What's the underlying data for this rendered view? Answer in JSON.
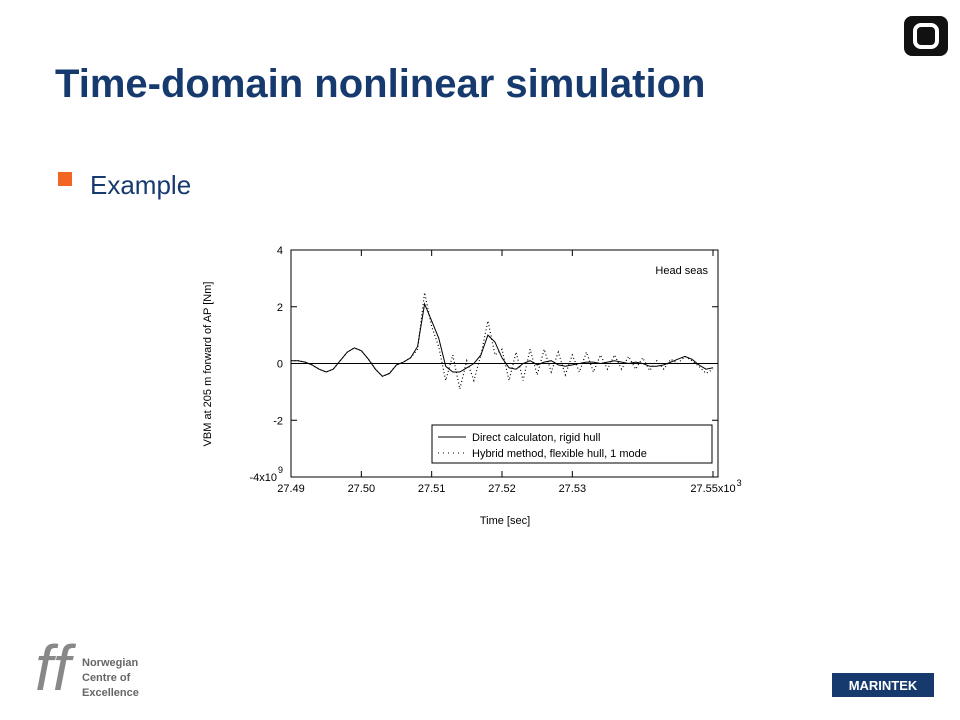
{
  "slide": {
    "title": "Time-domain nonlinear simulation",
    "bullet": "Example",
    "logo_left": [
      "Norwegian",
      "Centre of",
      "Excellence"
    ],
    "logo_right": "MARINTEK"
  },
  "chart_data": {
    "type": "line",
    "x_label": "Time [sec]",
    "y_label": "VBM at 205 m forward of AP [Nm]",
    "annotation": "Head seas",
    "x_exponent": "3",
    "y_exponent": "9",
    "xlim": [
      27.49,
      27.55
    ],
    "ylim": [
      -4,
      4
    ],
    "xticks": [
      27.49,
      {
        "value": 27.5,
        "label": "27.50"
      },
      27.51,
      27.52,
      27.53,
      {
        "value": 27.55,
        "label": "27.55x10"
      }
    ],
    "yticks": [
      4,
      2,
      0,
      -2,
      {
        "value": -4,
        "label": "-4x10"
      }
    ],
    "x": [
      27.49,
      27.491,
      27.492,
      27.493,
      27.494,
      27.495,
      27.496,
      27.497,
      27.498,
      27.499,
      27.5,
      27.501,
      27.502,
      27.503,
      27.504,
      27.505,
      27.506,
      27.507,
      27.508,
      27.509,
      27.51,
      27.511,
      27.512,
      27.513,
      27.514,
      27.515,
      27.516,
      27.517,
      27.518,
      27.519,
      27.52,
      27.521,
      27.522,
      27.523,
      27.524,
      27.525,
      27.526,
      27.527,
      27.528,
      27.529,
      27.53,
      27.531,
      27.532,
      27.533,
      27.534,
      27.535,
      27.536,
      27.537,
      27.538,
      27.539,
      27.54,
      27.541,
      27.542,
      27.543,
      27.544,
      27.545,
      27.546,
      27.547,
      27.548,
      27.549,
      27.55
    ],
    "series": [
      {
        "name": "Direct calculaton, rigid hull",
        "color": "#000000",
        "style": "solid",
        "values": [
          0.1,
          0.1,
          0.05,
          -0.05,
          -0.2,
          -0.3,
          -0.2,
          0.1,
          0.4,
          0.55,
          0.45,
          0.15,
          -0.2,
          -0.45,
          -0.35,
          -0.05,
          0.05,
          0.2,
          0.6,
          2.1,
          1.5,
          0.9,
          -0.1,
          -0.3,
          -0.3,
          -0.15,
          0,
          0.3,
          1.0,
          0.75,
          0.2,
          -0.15,
          -0.2,
          0,
          0.1,
          -0.05,
          0.05,
          0.1,
          -0.05,
          -0.1,
          -0.05,
          0,
          0.05,
          0.05,
          0,
          0.05,
          0.1,
          0.05,
          0,
          0.05,
          0,
          -0.1,
          -0.1,
          -0.05,
          0.05,
          0.15,
          0.25,
          0.15,
          -0.05,
          -0.2,
          -0.15
        ]
      },
      {
        "name": "Hybrid method, flexible hull, 1 mode",
        "color": "#000000",
        "style": "dotted",
        "values": [
          0.1,
          0.1,
          0.05,
          -0.05,
          -0.2,
          -0.3,
          -0.2,
          0.1,
          0.4,
          0.55,
          0.45,
          0.15,
          -0.2,
          -0.45,
          -0.35,
          -0.05,
          0.05,
          0.2,
          0.5,
          2.5,
          1.3,
          0.6,
          -0.6,
          0.3,
          -0.9,
          0.1,
          -0.6,
          0.3,
          1.5,
          0.3,
          0.5,
          -0.6,
          0.4,
          -0.6,
          0.5,
          -0.4,
          0.5,
          -0.3,
          0.4,
          -0.4,
          0.3,
          -0.3,
          0.4,
          -0.3,
          0.3,
          -0.2,
          0.3,
          -0.2,
          0.25,
          -0.2,
          0.2,
          -0.25,
          0.1,
          -0.2,
          0.15,
          0,
          0.25,
          0.1,
          -0.1,
          -0.35,
          -0.2
        ]
      }
    ]
  }
}
